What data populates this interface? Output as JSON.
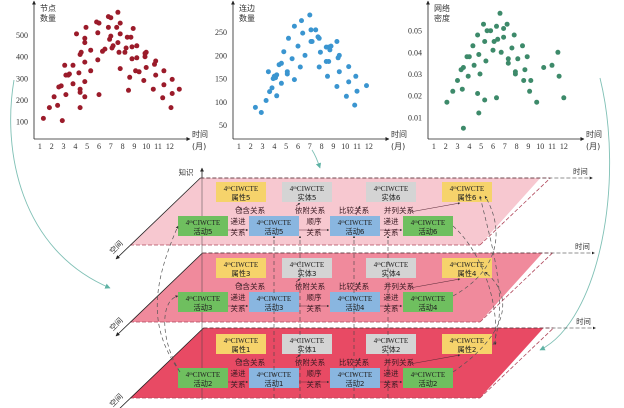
{
  "chart_data": [
    {
      "type": "scatter",
      "title": "",
      "ylabel": [
        "节点",
        "数量"
      ],
      "xlabel": [
        "时间",
        "(月)"
      ],
      "xlim": [
        0.5,
        13.2
      ],
      "ylim": [
        20,
        620
      ],
      "xticks": [
        "1",
        "2",
        "3",
        "4",
        "5",
        "6",
        "7",
        "8",
        "9",
        "10",
        "11",
        "12"
      ],
      "yticks": [
        100,
        200,
        300,
        400,
        500
      ],
      "color": "#9b1b2a",
      "points": [
        [
          1.3,
          115
        ],
        [
          1.8,
          165
        ],
        [
          2.2,
          215
        ],
        [
          2.5,
          175
        ],
        [
          2.6,
          260
        ],
        [
          2.8,
          265
        ],
        [
          2.9,
          105
        ],
        [
          3.1,
          360
        ],
        [
          3.2,
          315
        ],
        [
          3.2,
          225
        ],
        [
          3.4,
          315
        ],
        [
          3.5,
          320
        ],
        [
          3.8,
          360
        ],
        [
          3.8,
          275
        ],
        [
          4.1,
          505
        ],
        [
          4.3,
          325
        ],
        [
          4.4,
          250
        ],
        [
          4.4,
          235
        ],
        [
          4.4,
          165
        ],
        [
          4.4,
          410
        ],
        [
          4.5,
          420
        ],
        [
          4.8,
          375
        ],
        [
          4.8,
          465
        ],
        [
          4.8,
          485
        ],
        [
          4.9,
          535
        ],
        [
          4.8,
          215
        ],
        [
          4.8,
          285
        ],
        [
          5.3,
          335
        ],
        [
          5.3,
          430
        ],
        [
          5.8,
          560
        ],
        [
          6.0,
          555
        ],
        [
          5.9,
          510
        ],
        [
          5.9,
          385
        ],
        [
          6.0,
          225
        ],
        [
          6.3,
          425
        ],
        [
          6.5,
          435
        ],
        [
          6.8,
          585
        ],
        [
          6.8,
          535
        ],
        [
          6.9,
          480
        ],
        [
          7.0,
          580
        ],
        [
          7.0,
          495
        ],
        [
          7.1,
          440
        ],
        [
          7.2,
          450
        ],
        [
          7.5,
          535
        ],
        [
          7.6,
          465
        ],
        [
          7.6,
          605
        ],
        [
          7.7,
          420
        ],
        [
          7.8,
          555
        ],
        [
          7.8,
          345
        ],
        [
          7.8,
          505
        ],
        [
          8.2,
          420
        ],
        [
          8.3,
          440
        ],
        [
          8.4,
          490
        ],
        [
          8.5,
          245
        ],
        [
          8.6,
          305
        ],
        [
          8.7,
          490
        ],
        [
          8.8,
          445
        ],
        [
          8.8,
          390
        ],
        [
          8.9,
          530
        ],
        [
          9.1,
          335
        ],
        [
          9.2,
          450
        ],
        [
          9.2,
          395
        ],
        [
          9.4,
          330
        ],
        [
          9.8,
          290
        ],
        [
          9.9,
          415
        ],
        [
          9.9,
          400
        ],
        [
          10.0,
          350
        ],
        [
          10.0,
          420
        ],
        [
          10.6,
          250
        ],
        [
          10.7,
          365
        ],
        [
          10.8,
          380
        ],
        [
          10.8,
          315
        ],
        [
          11.4,
          210
        ],
        [
          11.5,
          270
        ],
        [
          11.5,
          335
        ],
        [
          12.1,
          165
        ],
        [
          12.2,
          230
        ],
        [
          12.2,
          295
        ],
        [
          12.8,
          250
        ]
      ]
    },
    {
      "type": "scatter",
      "title": "",
      "ylabel": [
        "连边",
        "数量"
      ],
      "xlabel": [
        "时间",
        "(月)"
      ],
      "xlim": [
        0.5,
        13.2
      ],
      "ylim": [
        20,
        300
      ],
      "xticks": [
        "1",
        "2",
        "3",
        "4",
        "5",
        "6",
        "7",
        "8",
        "9",
        "10",
        "11",
        "12"
      ],
      "yticks": [
        50,
        100,
        150,
        200,
        250
      ],
      "color": "#3a95d0",
      "points": [
        [
          2.4,
          88
        ],
        [
          2.9,
          77
        ],
        [
          3.3,
          103
        ],
        [
          3.5,
          165
        ],
        [
          3.6,
          122
        ],
        [
          3.8,
          130
        ],
        [
          3.9,
          150
        ],
        [
          4.0,
          155
        ],
        [
          4.1,
          152
        ],
        [
          4.2,
          113
        ],
        [
          4.2,
          158
        ],
        [
          4.4,
          180
        ],
        [
          4.6,
          183
        ],
        [
          4.6,
          140
        ],
        [
          4.8,
          208
        ],
        [
          5.1,
          165
        ],
        [
          5.1,
          160
        ],
        [
          5.2,
          237
        ],
        [
          5.5,
          193
        ],
        [
          5.7,
          148
        ],
        [
          5.7,
          263
        ],
        [
          6.0,
          220
        ],
        [
          6.2,
          175
        ],
        [
          6.3,
          275
        ],
        [
          6.4,
          248
        ],
        [
          6.6,
          200
        ],
        [
          7.0,
          287
        ],
        [
          7.1,
          230
        ],
        [
          7.1,
          255
        ],
        [
          7.2,
          230
        ],
        [
          7.5,
          255
        ],
        [
          7.7,
          240
        ],
        [
          7.8,
          175
        ],
        [
          7.8,
          237
        ],
        [
          7.9,
          207
        ],
        [
          8.4,
          187
        ],
        [
          8.4,
          218
        ],
        [
          8.5,
          155
        ],
        [
          8.6,
          187
        ],
        [
          8.6,
          218
        ],
        [
          8.7,
          212
        ],
        [
          8.8,
          220
        ],
        [
          9.3,
          230
        ],
        [
          9.3,
          133
        ],
        [
          9.4,
          195
        ],
        [
          9.5,
          200
        ],
        [
          9.5,
          165
        ],
        [
          10.1,
          112
        ],
        [
          10.3,
          143
        ],
        [
          10.3,
          176
        ],
        [
          10.8,
          93
        ],
        [
          10.9,
          155
        ],
        [
          11.0,
          123
        ],
        [
          11.8,
          135
        ]
      ]
    },
    {
      "type": "scatter",
      "title": "",
      "ylabel": [
        "网络",
        "密度"
      ],
      "xlabel": [
        "时间",
        "(月)"
      ],
      "xlim": [
        0.5,
        13.2
      ],
      "ylim": [
        0.0,
        0.06
      ],
      "xticks": [
        "1",
        "2",
        "3",
        "4",
        "5",
        "6",
        "7",
        "8",
        "9",
        "10",
        "11",
        "12"
      ],
      "yticks": [
        0.01,
        0.02,
        0.03,
        0.04,
        0.05
      ],
      "color": "#3d8a6a",
      "points": [
        [
          2.1,
          0.017
        ],
        [
          2.6,
          0.022
        ],
        [
          3.0,
          0.027
        ],
        [
          3.3,
          0.032
        ],
        [
          3.4,
          0.023
        ],
        [
          3.5,
          0.033
        ],
        [
          3.5,
          0.005
        ],
        [
          3.8,
          0.038
        ],
        [
          3.9,
          0.029
        ],
        [
          4.0,
          0.038
        ],
        [
          4.3,
          0.043
        ],
        [
          4.4,
          0.034
        ],
        [
          4.7,
          0.048
        ],
        [
          4.7,
          0.021
        ],
        [
          4.8,
          0.039
        ],
        [
          4.8,
          0.012
        ],
        [
          4.9,
          0.03
        ],
        [
          5.2,
          0.053
        ],
        [
          5.3,
          0.045
        ],
        [
          5.3,
          0.018
        ],
        [
          5.4,
          0.036
        ],
        [
          5.5,
          0.05
        ],
        [
          5.8,
          0.05
        ],
        [
          6.0,
          0.041
        ],
        [
          6.1,
          0.045
        ],
        [
          6.3,
          0.052
        ],
        [
          6.3,
          0.019
        ],
        [
          6.4,
          0.046
        ],
        [
          6.6,
          0.058
        ],
        [
          6.7,
          0.04
        ],
        [
          6.9,
          0.047
        ],
        [
          6.9,
          0.051
        ],
        [
          7.2,
          0.053
        ],
        [
          7.3,
          0.035
        ],
        [
          7.3,
          0.037
        ],
        [
          7.6,
          0.042
        ],
        [
          7.8,
          0.048
        ],
        [
          7.9,
          0.03
        ],
        [
          7.9,
          0.031
        ],
        [
          8.1,
          0.037
        ],
        [
          8.5,
          0.043
        ],
        [
          8.6,
          0.027
        ],
        [
          8.7,
          0.032
        ],
        [
          8.9,
          0.038
        ],
        [
          9.1,
          0.022
        ],
        [
          9.2,
          0.027
        ],
        [
          9.7,
          0.017
        ],
        [
          10.3,
          0.033
        ],
        [
          11.0,
          0.034
        ],
        [
          11.5,
          0.04
        ],
        [
          11.6,
          0.029
        ],
        [
          12.0,
          0.019
        ]
      ]
    }
  ],
  "diagram": {
    "axis_labels": {
      "knowledge": "知识",
      "time": "时间",
      "space": "空间"
    },
    "node_prefix": "4",
    "node_prefix_sup": "th",
    "node_brand": "CIWCTE",
    "layers": [
      {
        "id": "top",
        "fill": "#f7c8d0",
        "attribute": "属性5",
        "entity": "实体5",
        "entity2": "实体6",
        "attribute2": "属性6",
        "activities": [
          "活动5",
          "活动5",
          "活动6",
          "活动6"
        ],
        "relations": {
          "contain": "包含关系",
          "depend": "依附关系",
          "compare": "比较关系",
          "parallel": "并列关系",
          "progress": [
            "递进",
            "关系"
          ],
          "sequence": [
            "顺序",
            "关系"
          ],
          "progress2": [
            "递进",
            "关系"
          ]
        }
      },
      {
        "id": "middle",
        "fill": "#f08a9c",
        "attribute": "属性3",
        "entity": "实体3",
        "entity2": "实体4",
        "attribute2": "属性4",
        "activities": [
          "活动3",
          "活动3",
          "活动4",
          "活动4"
        ],
        "relations": {
          "contain": "包含关系",
          "depend": "依附关系",
          "compare": "比较关系",
          "parallel": "并列关系",
          "progress": [
            "递进",
            "关系"
          ],
          "sequence": [
            "顺序",
            "关系"
          ],
          "progress2": [
            "递进",
            "关系"
          ]
        }
      },
      {
        "id": "bottom",
        "fill": "#e84a64",
        "attribute": "属性1",
        "entity": "实体1",
        "entity2": "实体2",
        "attribute2": "属性2",
        "activities": [
          "活动2",
          "活动1",
          "活动2",
          "活动2"
        ],
        "relations": {
          "contain": "包含关系",
          "depend": "依附关系",
          "compare": "比较关系",
          "parallel": "并列关系",
          "progress": [
            "递进",
            "关系"
          ],
          "sequence": [
            "顺序",
            "关系"
          ],
          "progress2": [
            "递进",
            "关系"
          ]
        }
      }
    ],
    "colors": {
      "attribute": "#f6d36b",
      "entity": "#d4d4d4",
      "activity_green": "#6fbf5f",
      "activity_blue": "#89b6e0",
      "connector": "#7fc0b5",
      "dashed": "#555555"
    }
  }
}
